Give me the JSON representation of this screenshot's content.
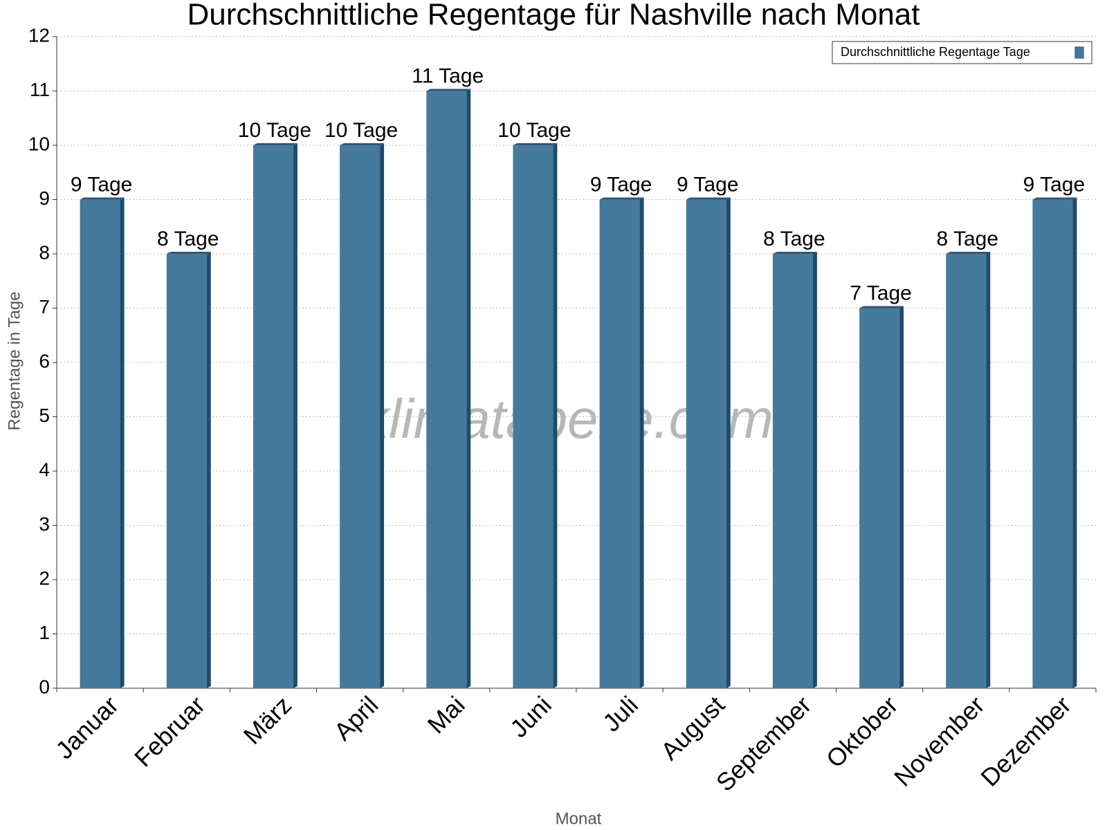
{
  "chart_data": {
    "type": "bar",
    "title": "Durchschnittliche Regentage für Nashville nach Monat",
    "x_label": "Monat",
    "y_label": "Regentage in Tage",
    "watermark": "klimatabelle.com",
    "categories": [
      "Januar",
      "Februar",
      "März",
      "April",
      "Mai",
      "Juni",
      "Juli",
      "August",
      "September",
      "Oktober",
      "November",
      "Dezember"
    ],
    "series": [
      {
        "name": "Durchschnittliche Regentage Tage",
        "color": "#467a9c",
        "values": [
          9,
          8,
          10,
          10,
          11,
          10,
          9,
          9,
          8,
          7,
          8,
          9
        ],
        "value_labels": [
          "9 Tage",
          "8 Tage",
          "10 Tage",
          "10 Tage",
          "11 Tage",
          "10 Tage",
          "9 Tage",
          "9 Tage",
          "8 Tage",
          "7 Tage",
          "8 Tage",
          "9 Tage"
        ]
      }
    ],
    "ylim": [
      0,
      12
    ],
    "yticks": [
      0,
      1,
      2,
      3,
      4,
      5,
      6,
      7,
      8,
      9,
      10,
      11,
      12
    ],
    "grid": true,
    "legend": "top-right"
  }
}
